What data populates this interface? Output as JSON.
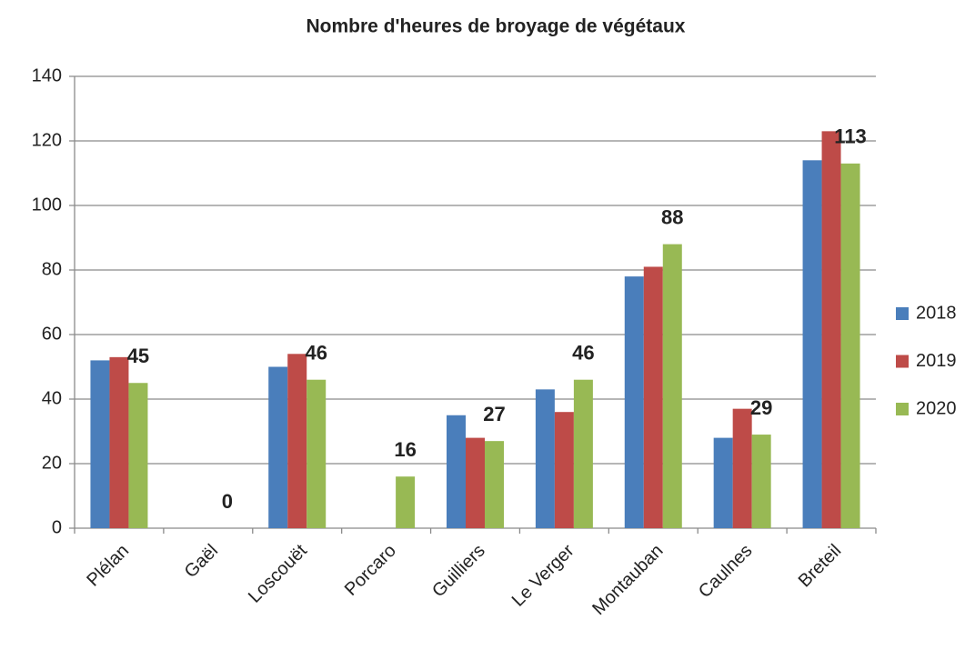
{
  "chart_data": {
    "type": "bar",
    "title": "Nombre d'heures de broyage de végétaux",
    "categories": [
      "Plélan",
      "Gaël",
      "Loscouët",
      "Porcaro",
      "Guilliers",
      "Le Verger",
      "Montauban",
      "Caulnes",
      "Breteil"
    ],
    "series": [
      {
        "name": "2018",
        "color": "#4a7ebb",
        "values": [
          52,
          0,
          50,
          0,
          35,
          43,
          78,
          28,
          114
        ]
      },
      {
        "name": "2019",
        "color": "#be4b48",
        "values": [
          53,
          0,
          54,
          0,
          28,
          36,
          81,
          37,
          123
        ]
      },
      {
        "name": "2020",
        "color": "#98b954",
        "values": [
          45,
          0,
          46,
          16,
          27,
          46,
          88,
          29,
          113
        ],
        "data_labels": true
      }
    ],
    "ylim": [
      0,
      140
    ],
    "yticks": [
      0,
      20,
      40,
      60,
      80,
      100,
      120,
      140
    ],
    "grid": true,
    "legend": "right"
  }
}
